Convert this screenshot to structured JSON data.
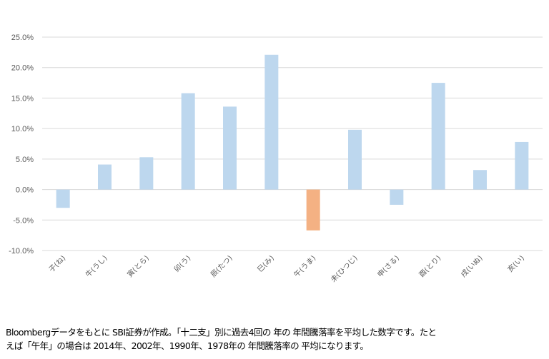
{
  "chart_data": {
    "type": "bar",
    "title": "",
    "xlabel": "",
    "ylabel": "",
    "categories": [
      "子(ね)",
      "牛(うし)",
      "寅(とら)",
      "卯(う)",
      "辰(たつ)",
      "巳(み)",
      "午(うま)",
      "未(ひつじ)",
      "申(さる)",
      "酉(とり)",
      "戌(いぬ)",
      "亥(い)"
    ],
    "values": [
      -3.0,
      4.1,
      5.3,
      15.8,
      13.6,
      22.1,
      -6.7,
      9.8,
      -2.5,
      17.5,
      3.2,
      7.8
    ],
    "unit": "%",
    "ylim": [
      -10,
      25
    ],
    "yticks": [
      "-10.0%",
      "-5.0%",
      "0.0%",
      "5.0%",
      "10.0%",
      "15.0%",
      "20.0%",
      "25.0%"
    ],
    "ytick_values": [
      -10,
      -5,
      0,
      5,
      10,
      15,
      20,
      25
    ],
    "grid": true,
    "legend": "none",
    "colors": {
      "default": "#bdd7ee",
      "highlight": "#f4b183",
      "grid": "#d9d9d9",
      "text": "#595959"
    },
    "highlight_index": 6
  },
  "caption": {
    "line1": "Bloombergデータをもとに SBI証券が作成。「十二支」別に過去4回の 年の 年間騰落率を平均した数字です。たと",
    "line2": "えば「午年」の場合は 2014年、2002年、1990年、1978年の 年間騰落率の 平均になります。"
  }
}
